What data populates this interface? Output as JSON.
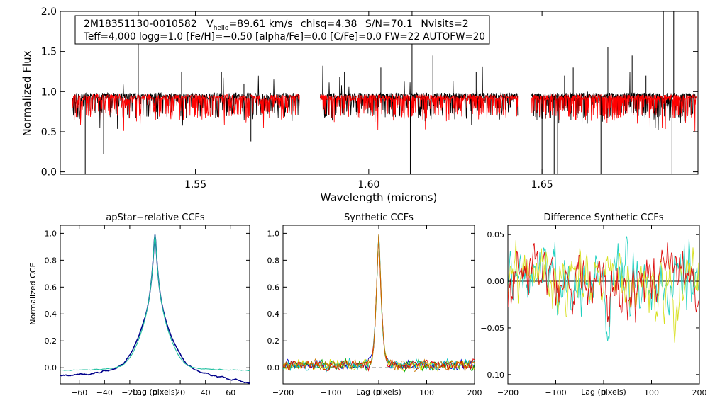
{
  "chart_data": [
    {
      "type": "line",
      "panel": "spectrum",
      "title": "",
      "header_line1": {
        "star_id": "2M18351130-0010582",
        "vhelio_prefix": "V",
        "vhelio_sub": "helio",
        "vhelio_value": "=89.61 km/s",
        "chisq": "chisq=4.38",
        "snr": "S/N=70.1",
        "nvisits": "Nvisits=2"
      },
      "header_line2": "Teff=4,000 logg=1.0 [Fe/H]=−0.50 [alpha/Fe]=0.0 [C/Fe]=0.0 FW=22 AUTOFW=20",
      "xlabel": "Wavelength (microns)",
      "ylabel": "Normalized Flux",
      "xlim": [
        1.511,
        1.695
      ],
      "ylim": [
        -0.03,
        2.0
      ],
      "xticks": [
        "1.55",
        "1.60",
        "1.65"
      ],
      "xtick_values": [
        1.55,
        1.6,
        1.65
      ],
      "yticks": [
        "0.0",
        "0.5",
        "1.0",
        "1.5",
        "2.0"
      ],
      "ytick_values": [
        0.0,
        0.5,
        1.0,
        1.5,
        2.0
      ],
      "chips": [
        [
          1.5145,
          1.58
        ],
        [
          1.586,
          1.643
        ],
        [
          1.647,
          1.6945
        ]
      ],
      "series": [
        {
          "name": "observed",
          "color": "#000000",
          "continuum": 0.95
        },
        {
          "name": "model",
          "color": "#ff0000",
          "continuum": 0.93
        }
      ],
      "spikes": [
        {
          "x": 1.5182,
          "y": -0.03
        },
        {
          "x": 1.5335,
          "y": 2.0
        },
        {
          "x": 1.5235,
          "y": 0.22
        },
        {
          "x": 1.564,
          "y": 1.1
        },
        {
          "x": 1.566,
          "y": 0.38
        },
        {
          "x": 1.6035,
          "y": 1.3
        },
        {
          "x": 1.612,
          "y": -0.03
        },
        {
          "x": 1.6125,
          "y": 2.0
        },
        {
          "x": 1.6185,
          "y": 1.45
        },
        {
          "x": 1.631,
          "y": 1.25
        },
        {
          "x": 1.6425,
          "y": 2.0
        },
        {
          "x": 1.65,
          "y": -0.03
        },
        {
          "x": 1.6535,
          "y": -0.03
        },
        {
          "x": 1.6545,
          "y": -0.03
        },
        {
          "x": 1.659,
          "y": 1.3
        },
        {
          "x": 1.667,
          "y": -0.03
        },
        {
          "x": 1.669,
          "y": 1.55
        },
        {
          "x": 1.676,
          "y": 1.45
        },
        {
          "x": 1.685,
          "y": 2.0
        },
        {
          "x": 1.6875,
          "y": -0.03
        },
        {
          "x": 1.688,
          "y": 2.0
        },
        {
          "x": 1.546,
          "y": 1.25
        },
        {
          "x": 1.5575,
          "y": 1.25
        },
        {
          "x": 1.593,
          "y": 1.25
        },
        {
          "x": 1.6565,
          "y": 1.2
        },
        {
          "x": 1.68,
          "y": 1.2
        }
      ]
    },
    {
      "type": "line",
      "panel": "apstar-ccf",
      "title": "apStar−relative CCFs",
      "xlabel": "Lag (pixels)",
      "ylabel": "Normalized CCF",
      "xlim": [
        -75,
        75
      ],
      "ylim": [
        -0.12,
        1.06
      ],
      "xticks": [
        "−60",
        "−40",
        "−20",
        "0",
        "20",
        "40",
        "60"
      ],
      "xtick_values": [
        -60,
        -40,
        -20,
        0,
        20,
        40,
        60
      ],
      "yticks": [
        "0.0",
        "0.2",
        "0.4",
        "0.6",
        "0.8",
        "1.0"
      ],
      "ytick_values": [
        0.0,
        0.2,
        0.4,
        0.6,
        0.8,
        1.0
      ],
      "series": [
        {
          "name": "visit-1",
          "color": "#00008b",
          "width": 25,
          "base": -0.06,
          "noise": 0.018
        },
        {
          "name": "visit-2",
          "color": "#20c0a0",
          "width": 22,
          "base": -0.02,
          "noise": 0.01
        }
      ]
    },
    {
      "type": "line",
      "panel": "synthetic-ccf",
      "title": "Synthetic CCFs",
      "xlabel": "Lag (pixels)",
      "ylabel": "",
      "xlim": [
        -200,
        200
      ],
      "ylim": [
        -0.12,
        1.06
      ],
      "xticks": [
        "−200",
        "−100",
        "0",
        "100",
        "200"
      ],
      "xtick_values": [
        -200,
        -100,
        0,
        100,
        200
      ],
      "yticks": [
        "0.0",
        "0.2",
        "0.4",
        "0.6",
        "0.8",
        "1.0"
      ],
      "ytick_values": [
        0.0,
        0.2,
        0.4,
        0.6,
        0.8,
        1.0
      ],
      "zero_line": "dashed",
      "series": [
        {
          "name": "ccf-blue",
          "color": "#0000cc"
        },
        {
          "name": "ccf-green",
          "color": "#00aa00"
        },
        {
          "name": "ccf-yellow",
          "color": "#e0e000"
        },
        {
          "name": "ccf-cyan",
          "color": "#00c0c0"
        },
        {
          "name": "ccf-red",
          "color": "#dd0000"
        },
        {
          "name": "ccf-orange",
          "color": "#cc7a00"
        }
      ]
    },
    {
      "type": "line",
      "panel": "difference-ccf",
      "title": "Difference Synthetic CCFs",
      "xlabel": "Lag (pixels)",
      "ylabel": "",
      "xlim": [
        -200,
        200
      ],
      "ylim": [
        -0.11,
        0.06
      ],
      "xticks": [
        "−200",
        "−100",
        "0",
        "100",
        "200"
      ],
      "xtick_values": [
        -200,
        -100,
        0,
        100,
        200
      ],
      "yticks": [
        "−0.10",
        "−0.05",
        "0.00",
        "0.05"
      ],
      "ytick_values": [
        -0.1,
        -0.05,
        0.0,
        0.05
      ],
      "zero_line": "solid",
      "series": [
        {
          "name": "diff-cyan",
          "color": "#20d0c0"
        },
        {
          "name": "diff-yellow",
          "color": "#d8e020"
        },
        {
          "name": "diff-red",
          "color": "#dd1010"
        }
      ]
    }
  ]
}
